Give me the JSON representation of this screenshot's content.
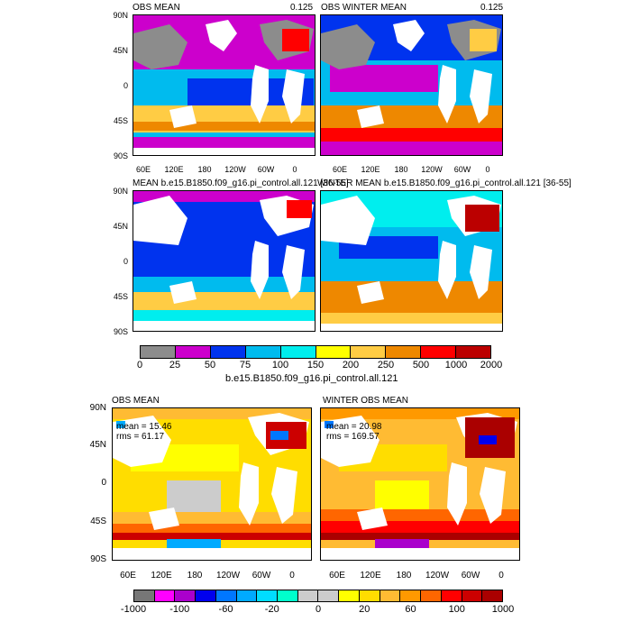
{
  "top_panels": [
    {
      "title": "OBS MEAN",
      "corner": "0.125"
    },
    {
      "title": "OBS WINTER MEAN",
      "corner": "0.125"
    },
    {
      "title": "MEAN b.e15.B1850.f09_g16.pi_control.all.121 [36-55]",
      "corner": ""
    },
    {
      "title": "WINTER MEAN b.e15.B1850.f09_g16.pi_control.all.121 [36-55]",
      "corner": ""
    }
  ],
  "top_lat_labels": [
    "90N",
    "45N",
    "0",
    "45S",
    "90S"
  ],
  "lon_labels": [
    "60E",
    "120E",
    "180",
    "120W",
    "60W",
    "0"
  ],
  "top_colorbar": {
    "colors": [
      "#8c8c8c",
      "#cc00cc",
      "#0033ee",
      "#00bbee",
      "#00eeee",
      "#ffff00",
      "#ffcc44",
      "#ee8800",
      "#ff0000",
      "#bb0000"
    ],
    "labels": [
      "0",
      "25",
      "50",
      "75",
      "100",
      "150",
      "200",
      "250",
      "500",
      "1000",
      "2000"
    ],
    "caption": "b.e15.B1850.f09_g16.pi_control.all.121"
  },
  "bottom_panels": [
    {
      "title": "OBS MEAN",
      "mean": "mean = 15.46",
      "rms": "rms = 61.17"
    },
    {
      "title": "WINTER OBS MEAN",
      "mean": "mean = 20.98",
      "rms": "rms = 169.57"
    }
  ],
  "bottom_lat_labels": [
    "90N",
    "45N",
    "0",
    "45S",
    "90S"
  ],
  "bottom_colorbar": {
    "colors": [
      "#777777",
      "#ff00ff",
      "#aa00cc",
      "#0000ee",
      "#0077ff",
      "#00aaff",
      "#00ddff",
      "#00ffcc",
      "#cccccc",
      "#cccccc",
      "#ffff00",
      "#ffdd00",
      "#ffbb33",
      "#ff9900",
      "#ff6600",
      "#ff0000",
      "#cc0000",
      "#aa0000"
    ],
    "labels": [
      "-1000",
      "-100",
      "-60",
      "-20",
      "0",
      "20",
      "60",
      "100",
      "1000"
    ]
  }
}
